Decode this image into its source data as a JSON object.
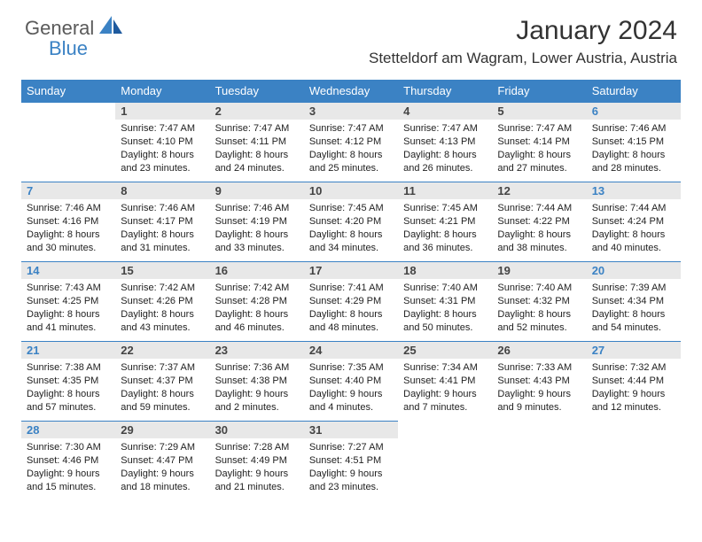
{
  "logo": {
    "part1": "General",
    "part2": "Blue"
  },
  "title": "January 2024",
  "location": "Stetteldorf am Wagram, Lower Austria, Austria",
  "colors": {
    "header_bg": "#3b82c4",
    "header_text": "#ffffff",
    "daynum_bg": "#e8e8e8",
    "daynum_text": "#444444",
    "weekend_text": "#3b82c4",
    "body_text": "#222222",
    "title_text": "#333333",
    "row_border": "#3b82c4"
  },
  "days_of_week": [
    "Sunday",
    "Monday",
    "Tuesday",
    "Wednesday",
    "Thursday",
    "Friday",
    "Saturday"
  ],
  "weeks": [
    [
      null,
      {
        "n": "1",
        "sr": "7:47 AM",
        "ss": "4:10 PM",
        "dl": "8 hours and 23 minutes."
      },
      {
        "n": "2",
        "sr": "7:47 AM",
        "ss": "4:11 PM",
        "dl": "8 hours and 24 minutes."
      },
      {
        "n": "3",
        "sr": "7:47 AM",
        "ss": "4:12 PM",
        "dl": "8 hours and 25 minutes."
      },
      {
        "n": "4",
        "sr": "7:47 AM",
        "ss": "4:13 PM",
        "dl": "8 hours and 26 minutes."
      },
      {
        "n": "5",
        "sr": "7:47 AM",
        "ss": "4:14 PM",
        "dl": "8 hours and 27 minutes."
      },
      {
        "n": "6",
        "sr": "7:46 AM",
        "ss": "4:15 PM",
        "dl": "8 hours and 28 minutes."
      }
    ],
    [
      {
        "n": "7",
        "sr": "7:46 AM",
        "ss": "4:16 PM",
        "dl": "8 hours and 30 minutes."
      },
      {
        "n": "8",
        "sr": "7:46 AM",
        "ss": "4:17 PM",
        "dl": "8 hours and 31 minutes."
      },
      {
        "n": "9",
        "sr": "7:46 AM",
        "ss": "4:19 PM",
        "dl": "8 hours and 33 minutes."
      },
      {
        "n": "10",
        "sr": "7:45 AM",
        "ss": "4:20 PM",
        "dl": "8 hours and 34 minutes."
      },
      {
        "n": "11",
        "sr": "7:45 AM",
        "ss": "4:21 PM",
        "dl": "8 hours and 36 minutes."
      },
      {
        "n": "12",
        "sr": "7:44 AM",
        "ss": "4:22 PM",
        "dl": "8 hours and 38 minutes."
      },
      {
        "n": "13",
        "sr": "7:44 AM",
        "ss": "4:24 PM",
        "dl": "8 hours and 40 minutes."
      }
    ],
    [
      {
        "n": "14",
        "sr": "7:43 AM",
        "ss": "4:25 PM",
        "dl": "8 hours and 41 minutes."
      },
      {
        "n": "15",
        "sr": "7:42 AM",
        "ss": "4:26 PM",
        "dl": "8 hours and 43 minutes."
      },
      {
        "n": "16",
        "sr": "7:42 AM",
        "ss": "4:28 PM",
        "dl": "8 hours and 46 minutes."
      },
      {
        "n": "17",
        "sr": "7:41 AM",
        "ss": "4:29 PM",
        "dl": "8 hours and 48 minutes."
      },
      {
        "n": "18",
        "sr": "7:40 AM",
        "ss": "4:31 PM",
        "dl": "8 hours and 50 minutes."
      },
      {
        "n": "19",
        "sr": "7:40 AM",
        "ss": "4:32 PM",
        "dl": "8 hours and 52 minutes."
      },
      {
        "n": "20",
        "sr": "7:39 AM",
        "ss": "4:34 PM",
        "dl": "8 hours and 54 minutes."
      }
    ],
    [
      {
        "n": "21",
        "sr": "7:38 AM",
        "ss": "4:35 PM",
        "dl": "8 hours and 57 minutes."
      },
      {
        "n": "22",
        "sr": "7:37 AM",
        "ss": "4:37 PM",
        "dl": "8 hours and 59 minutes."
      },
      {
        "n": "23",
        "sr": "7:36 AM",
        "ss": "4:38 PM",
        "dl": "9 hours and 2 minutes."
      },
      {
        "n": "24",
        "sr": "7:35 AM",
        "ss": "4:40 PM",
        "dl": "9 hours and 4 minutes."
      },
      {
        "n": "25",
        "sr": "7:34 AM",
        "ss": "4:41 PM",
        "dl": "9 hours and 7 minutes."
      },
      {
        "n": "26",
        "sr": "7:33 AM",
        "ss": "4:43 PM",
        "dl": "9 hours and 9 minutes."
      },
      {
        "n": "27",
        "sr": "7:32 AM",
        "ss": "4:44 PM",
        "dl": "9 hours and 12 minutes."
      }
    ],
    [
      {
        "n": "28",
        "sr": "7:30 AM",
        "ss": "4:46 PM",
        "dl": "9 hours and 15 minutes."
      },
      {
        "n": "29",
        "sr": "7:29 AM",
        "ss": "4:47 PM",
        "dl": "9 hours and 18 minutes."
      },
      {
        "n": "30",
        "sr": "7:28 AM",
        "ss": "4:49 PM",
        "dl": "9 hours and 21 minutes."
      },
      {
        "n": "31",
        "sr": "7:27 AM",
        "ss": "4:51 PM",
        "dl": "9 hours and 23 minutes."
      },
      null,
      null,
      null
    ]
  ],
  "labels": {
    "sunrise": "Sunrise:",
    "sunset": "Sunset:",
    "daylight": "Daylight:"
  }
}
